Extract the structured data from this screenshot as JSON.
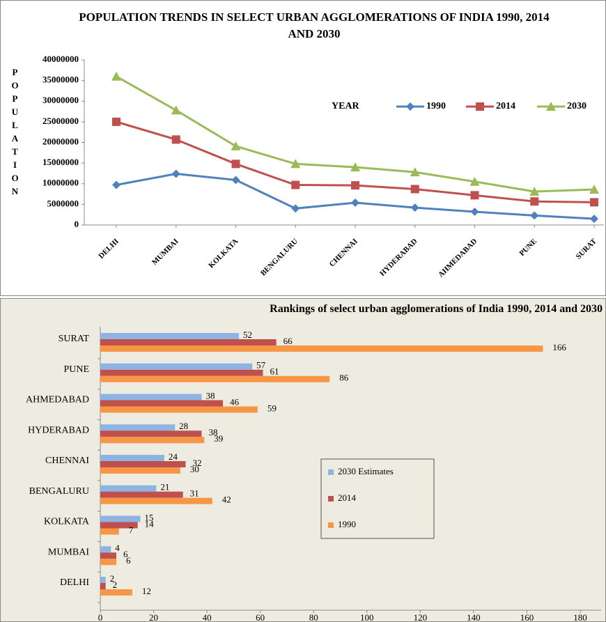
{
  "chart_data": [
    {
      "type": "line",
      "title": "POPULATION TRENDS IN SELECT URBAN AGGLOMERATIONS OF INDIA 1990, 2014 AND 2030",
      "y_label": "POPULATION",
      "legend_title": "YEAR",
      "categories": [
        "DELHI",
        "MUMBAI",
        "KOLKATA",
        "BENGALURU",
        "CHENNAI",
        "HYDERABAD",
        "AHMEDABAD",
        "PUNE",
        "SURAT"
      ],
      "series": [
        {
          "name": "1990",
          "color": "#4f81bd",
          "marker": "diamond",
          "values": [
            9700000,
            12400000,
            10900000,
            4000000,
            5400000,
            4200000,
            3200000,
            2300000,
            1500000
          ]
        },
        {
          "name": "2014",
          "color": "#c0504d",
          "marker": "square",
          "values": [
            25000000,
            20700000,
            14800000,
            9700000,
            9600000,
            8700000,
            7200000,
            5700000,
            5500000
          ]
        },
        {
          "name": "2030",
          "color": "#9bbb59",
          "marker": "triangle",
          "values": [
            36000000,
            27800000,
            19100000,
            14800000,
            14000000,
            12800000,
            10500000,
            8100000,
            8600000
          ]
        }
      ],
      "ylim": [
        0,
        40000000
      ],
      "yticks": [
        0,
        5000000,
        10000000,
        15000000,
        20000000,
        25000000,
        30000000,
        35000000,
        40000000
      ],
      "legend": "top-right"
    },
    {
      "type": "hbar",
      "title": "Rankings of select urban agglomerations of India 1990, 2014 and 2030",
      "categories": [
        "DELHI",
        "MUMBAI",
        "KOLKATA",
        "BENGALURU",
        "CHENNAI",
        "HYDERABAD",
        "AHMEDABAD",
        "PUNE",
        "SURAT"
      ],
      "series": [
        {
          "name": "2030 Estimates",
          "color": "#8db4e2",
          "values": [
            2,
            4,
            15,
            21,
            24,
            28,
            38,
            57,
            52
          ]
        },
        {
          "name": "2014",
          "color": "#c0504d",
          "values": [
            2,
            6,
            14,
            31,
            32,
            38,
            46,
            61,
            66
          ]
        },
        {
          "name": "1990",
          "color": "#f79646",
          "values": [
            12,
            6,
            7,
            42,
            30,
            39,
            59,
            86,
            166
          ]
        }
      ],
      "xlim": [
        0,
        180
      ],
      "xticks": [
        0,
        20,
        40,
        60,
        80,
        100,
        120,
        140,
        160,
        180
      ],
      "legend": "center-right"
    }
  ]
}
